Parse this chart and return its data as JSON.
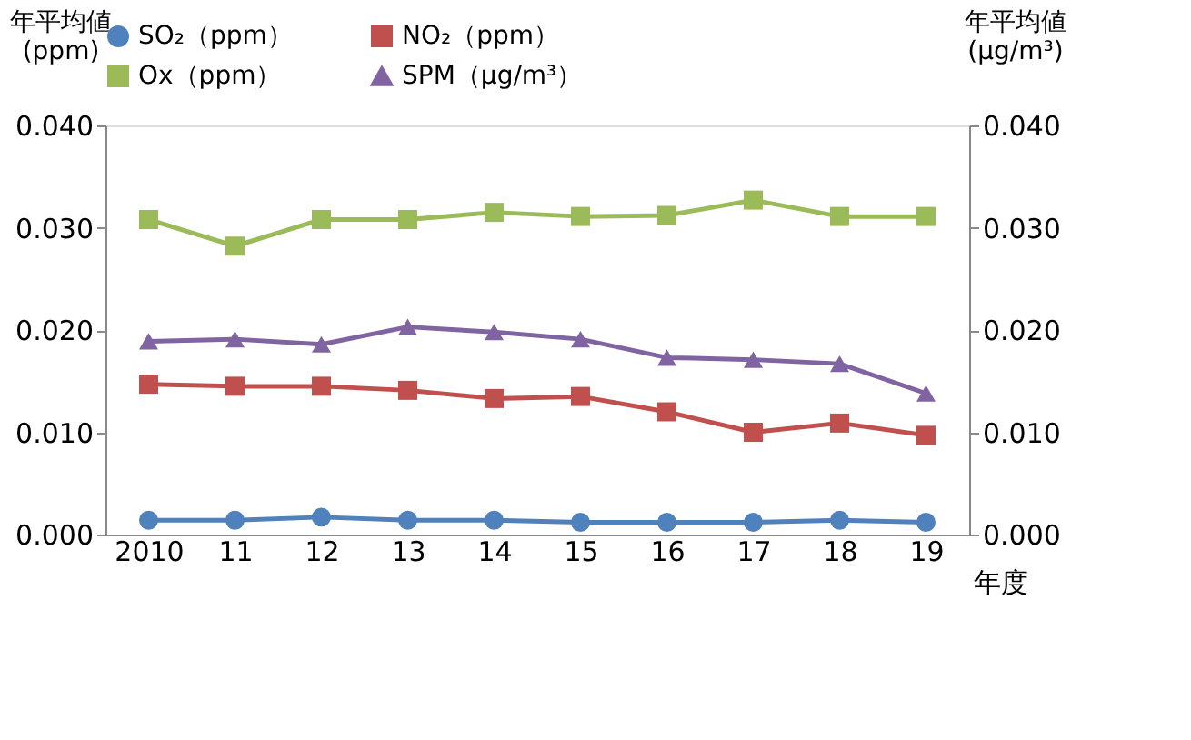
{
  "chart_data": {
    "type": "line",
    "xlabel": "年度",
    "ylabel": "年平均値\n(ppm)",
    "y2label": "年平均値\n(μg/m³)",
    "categories": [
      "2010",
      "11",
      "12",
      "13",
      "14",
      "15",
      "16",
      "17",
      "18",
      "19"
    ],
    "series": [
      {
        "name": "SO₂（ppm）",
        "color": "#4f81bd",
        "marker": "circle",
        "values": [
          0.0014,
          0.0014,
          0.0017,
          0.0014,
          0.0014,
          0.0012,
          0.0012,
          0.0012,
          0.0014,
          0.0012
        ]
      },
      {
        "name": "NO₂（ppm）",
        "color": "#c0504d",
        "marker": "square",
        "values": [
          0.0147,
          0.0145,
          0.0145,
          0.0141,
          0.0133,
          0.0135,
          0.012,
          0.01,
          0.0109,
          0.0097
        ]
      },
      {
        "name": "Ox（ppm）",
        "color": "#9bbb59",
        "marker": "square",
        "values": [
          0.0308,
          0.0282,
          0.0308,
          0.0308,
          0.0315,
          0.0311,
          0.0312,
          0.0327,
          0.0311,
          0.0311
        ]
      },
      {
        "name": "SPM（μg/m³）",
        "color": "#8064a2",
        "marker": "triangle",
        "values": [
          0.0189,
          0.0191,
          0.0186,
          0.0203,
          0.0198,
          0.0191,
          0.0173,
          0.0171,
          0.0167,
          0.0138
        ]
      }
    ],
    "ylim": [
      0,
      0.04
    ],
    "yticks": [
      {
        "value": 0,
        "label": "0.000"
      },
      {
        "value": 0.01,
        "label": "0.010"
      },
      {
        "value": 0.02,
        "label": "0.020"
      },
      {
        "value": 0.03,
        "label": "0.030"
      },
      {
        "value": 0.04,
        "label": "0.040"
      }
    ],
    "y2lim": [
      0,
      0.04
    ],
    "y2ticks": [
      {
        "value": 0,
        "label": "0.000"
      },
      {
        "value": 0.01,
        "label": "0.010"
      },
      {
        "value": 0.02,
        "label": "0.020"
      },
      {
        "value": 0.03,
        "label": "0.030"
      },
      {
        "value": 0.04,
        "label": "0.040"
      }
    ],
    "grid": false,
    "legend": "top",
    "line_style": "solid"
  }
}
